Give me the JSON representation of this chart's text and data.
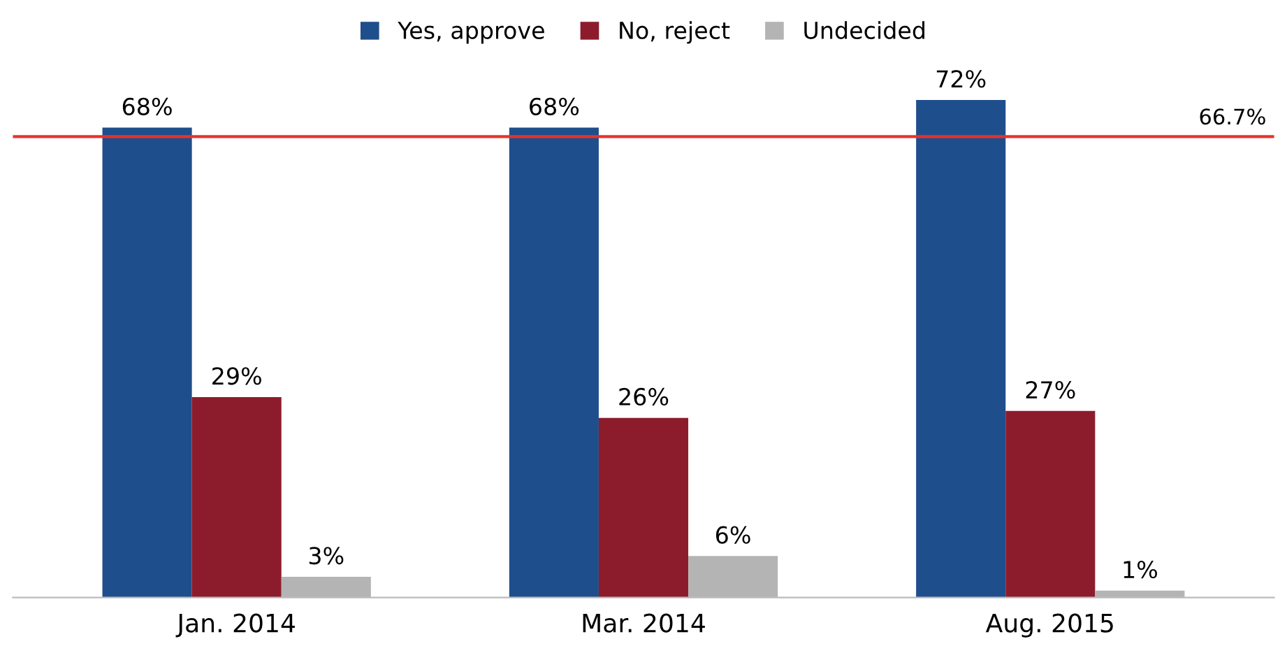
{
  "chart_data": {
    "type": "bar",
    "categories": [
      "Jan. 2014",
      "Mar. 2014",
      "Aug. 2015"
    ],
    "series": [
      {
        "name": "Yes, approve",
        "color": "#1f4e8c",
        "values": [
          68,
          68,
          72
        ],
        "value_labels": [
          "68%",
          "68%",
          "72%"
        ]
      },
      {
        "name": "No, reject",
        "color": "#8c1c2c",
        "values": [
          29,
          26,
          27
        ],
        "value_labels": [
          "29%",
          "26%",
          "27%"
        ]
      },
      {
        "name": "Undecided",
        "color": "#b4b4b4",
        "values": [
          3,
          6,
          1
        ],
        "value_labels": [
          "3%",
          "6%",
          "1%"
        ]
      }
    ],
    "ref_lines": [
      {
        "axis": "y",
        "value": 66.7,
        "label": "66.7%",
        "color": "#e8322a"
      }
    ],
    "legend": "top",
    "grid": false
  }
}
